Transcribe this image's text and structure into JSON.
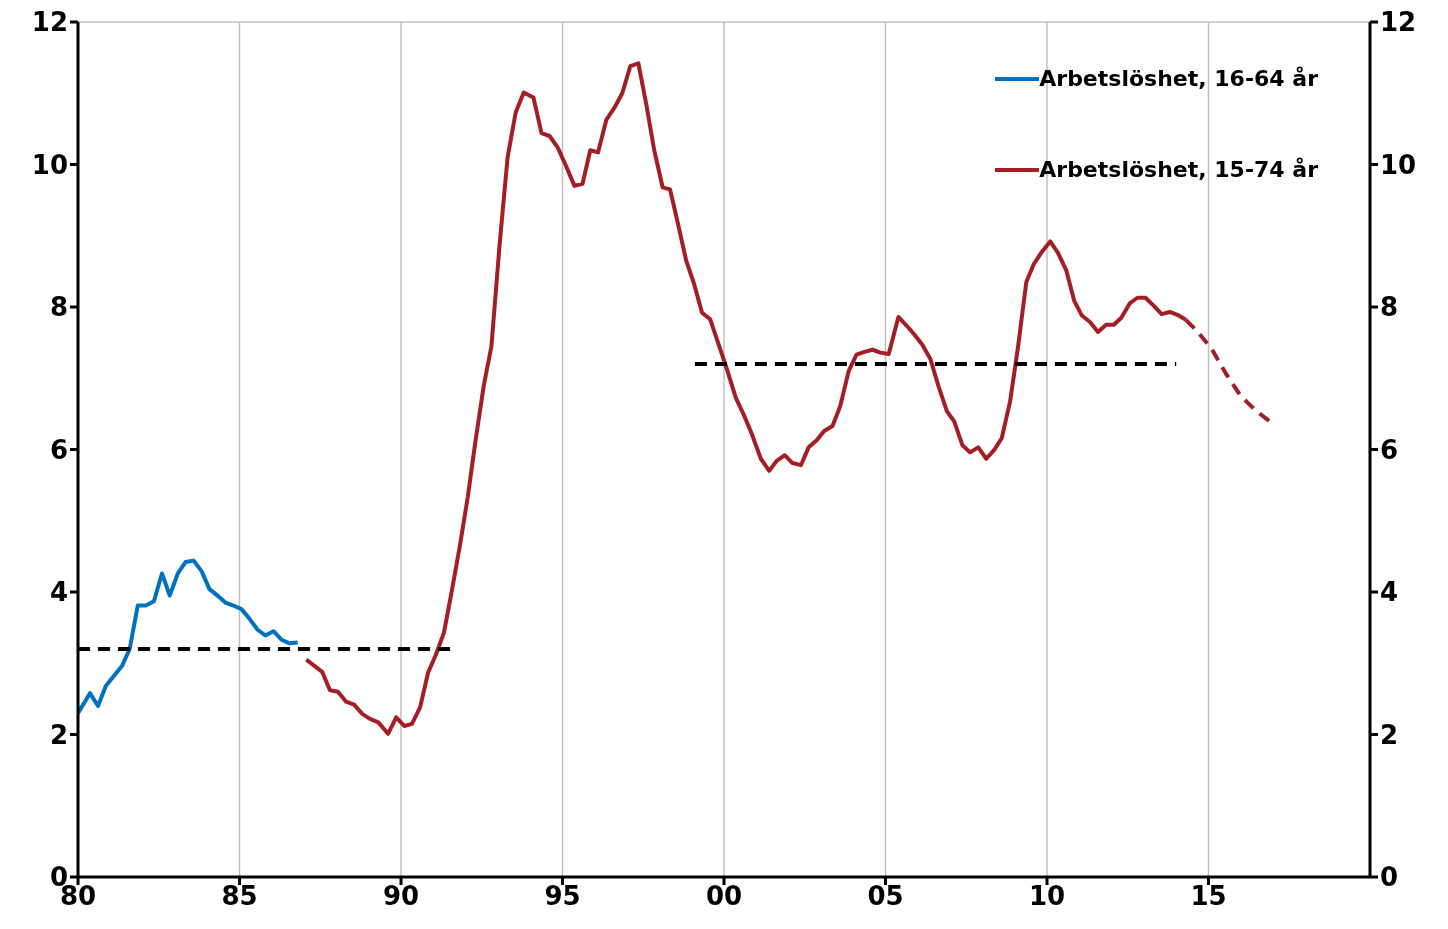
{
  "chart_data": {
    "type": "line",
    "xlim": [
      1980,
      2020
    ],
    "xticks": [
      {
        "value": 1980,
        "label": "80"
      },
      {
        "value": 1985,
        "label": "85"
      },
      {
        "value": 1990,
        "label": "90"
      },
      {
        "value": 1995,
        "label": "95"
      },
      {
        "value": 2000,
        "label": "00"
      },
      {
        "value": 2005,
        "label": "05"
      },
      {
        "value": 2010,
        "label": "10"
      },
      {
        "value": 2015,
        "label": "15"
      }
    ],
    "ylim": [
      0,
      12
    ],
    "yticks": [
      0,
      2,
      4,
      6,
      8,
      10,
      12
    ],
    "y2lim": [
      0,
      12
    ],
    "y2ticks": [
      0,
      2,
      4,
      6,
      8,
      10,
      12
    ],
    "grid": true,
    "legend": "top right",
    "marker": "none",
    "series": [
      {
        "name": "Arbetslöshet, 16-64 år",
        "color": "#0070c0",
        "line_style": "solid",
        "x": [
          1980.0,
          1980.37,
          1980.62,
          1980.86,
          1981.36,
          1981.6,
          1981.85,
          1982.1,
          1982.35,
          1982.6,
          1982.84,
          1983.09,
          1983.33,
          1983.58,
          1983.83,
          1984.07,
          1984.32,
          1984.57,
          1984.81,
          1985.06,
          1985.3,
          1985.56,
          1985.8,
          1986.05,
          1986.3,
          1986.54,
          1986.8
        ],
        "values": [
          2.3,
          2.58,
          2.4,
          2.68,
          2.96,
          3.2,
          3.81,
          3.81,
          3.87,
          4.26,
          3.95,
          4.26,
          4.42,
          4.44,
          4.29,
          4.04,
          3.95,
          3.85,
          3.81,
          3.76,
          3.63,
          3.47,
          3.39,
          3.45,
          3.33,
          3.28,
          3.29
        ]
      },
      {
        "name": "Arbetslöshet, 15-74 år",
        "color": "#a31f24",
        "line_style": "solid",
        "x": [
          1987.07,
          1987.3,
          1987.56,
          1987.8,
          1988.05,
          1988.3,
          1988.55,
          1988.8,
          1989.04,
          1989.3,
          1989.6,
          1989.85,
          1990.1,
          1990.34,
          1990.59,
          1990.84,
          1991.08,
          1991.33,
          1991.57,
          1991.82,
          1992.07,
          1992.3,
          1992.56,
          1992.8,
          1993.05,
          1993.3,
          1993.55,
          1993.8,
          1994.1,
          1994.35,
          1994.6,
          1994.85,
          1995.1,
          1995.37,
          1995.62,
          1995.86,
          1996.1,
          1996.36,
          1996.6,
          1996.85,
          1997.1,
          1997.35,
          1997.6,
          1997.84,
          1998.1,
          1998.33,
          1998.58,
          1998.83,
          1999.07,
          1999.32,
          1999.57,
          1999.8,
          2000.06,
          2000.37,
          2000.6,
          2000.86,
          2001.14,
          2001.4,
          2001.63,
          2001.88,
          2002.12,
          2002.38,
          2002.62,
          2002.87,
          2003.1,
          2003.36,
          2003.6,
          2003.86,
          2004.1,
          2004.35,
          2004.6,
          2004.84,
          2005.1,
          2005.4,
          2005.65,
          2005.9,
          2006.14,
          2006.39,
          2006.64,
          2006.9,
          2007.13,
          2007.38,
          2007.62,
          2007.87,
          2008.12,
          2008.36,
          2008.6,
          2008.86,
          2009.1,
          2009.36,
          2009.6,
          2009.85,
          2010.1,
          2010.34,
          2010.6,
          2010.84,
          2011.08,
          2011.33,
          2011.58,
          2011.83,
          2012.07,
          2012.3,
          2012.56,
          2012.8,
          2013.05,
          2013.3,
          2013.55,
          2013.8,
          2014.04,
          2014.3
        ],
        "values": [
          3.05,
          2.97,
          2.88,
          2.62,
          2.6,
          2.46,
          2.42,
          2.29,
          2.22,
          2.17,
          2.01,
          2.24,
          2.12,
          2.15,
          2.38,
          2.87,
          3.12,
          3.43,
          4.01,
          4.64,
          5.34,
          6.1,
          6.89,
          7.45,
          8.86,
          10.1,
          10.73,
          11.01,
          10.94,
          10.44,
          10.4,
          10.24,
          9.99,
          9.7,
          9.73,
          10.2,
          10.17,
          10.63,
          10.79,
          11.0,
          11.38,
          11.42,
          10.83,
          10.2,
          9.68,
          9.65,
          9.16,
          8.65,
          8.33,
          7.92,
          7.83,
          7.52,
          7.17,
          6.72,
          6.5,
          6.22,
          5.87,
          5.7,
          5.84,
          5.92,
          5.81,
          5.78,
          6.03,
          6.13,
          6.26,
          6.33,
          6.61,
          7.1,
          7.33,
          7.37,
          7.4,
          7.36,
          7.34,
          7.86,
          7.74,
          7.61,
          7.47,
          7.27,
          6.89,
          6.54,
          6.39,
          6.06,
          5.96,
          6.03,
          5.87,
          5.99,
          6.16,
          6.68,
          7.43,
          8.35,
          8.61,
          8.78,
          8.92,
          8.76,
          8.51,
          8.09,
          7.88,
          7.79,
          7.65,
          7.75,
          7.75,
          7.85,
          8.05,
          8.13,
          8.13,
          8.02,
          7.9,
          7.93,
          7.89,
          7.82
        ]
      },
      {
        "color": "#a31f24",
        "line_style": "dashed",
        "x": [
          2014.3,
          2014.63,
          2015.1,
          2015.56,
          2016.0,
          2016.48,
          2016.97
        ],
        "values": [
          7.82,
          7.67,
          7.41,
          7.05,
          6.75,
          6.54,
          6.37
        ]
      },
      {
        "color": "#000000",
        "line_style": "dashed",
        "x": [
          1980,
          1991.6
        ],
        "values": [
          3.2,
          3.2
        ]
      },
      {
        "color": "#000000",
        "line_style": "dashed",
        "x": [
          1999.1,
          2014.0
        ],
        "values": [
          7.2,
          7.2
        ]
      }
    ]
  }
}
